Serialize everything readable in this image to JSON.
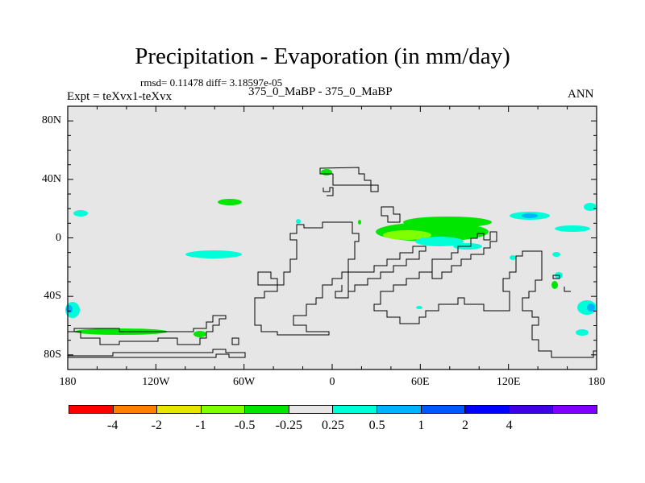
{
  "title": "Precipitation - Evaporation (in mm/day)",
  "stats": "rmsd= 0.11478  diff= 3.18597e-05",
  "subtitle": "375_0_MaBP - 375_0_MaBP",
  "expt": "Expt = teXvx1-teXvx",
  "season": "ANN",
  "axes": {
    "y_ticks": [
      {
        "label": "80N",
        "lat": 80
      },
      {
        "label": "40N",
        "lat": 40
      },
      {
        "label": "0",
        "lat": 0
      },
      {
        "label": "40S",
        "lat": -40
      },
      {
        "label": "80S",
        "lat": -80
      }
    ],
    "x_ticks": [
      {
        "label": "180",
        "lon": -180
      },
      {
        "label": "120W",
        "lon": -120
      },
      {
        "label": "60W",
        "lon": -60
      },
      {
        "label": "0",
        "lon": 0
      },
      {
        "label": "60E",
        "lon": 60
      },
      {
        "label": "120E",
        "lon": 120
      },
      {
        "label": "180",
        "lon": 180
      }
    ],
    "lat_range": [
      -90,
      90
    ],
    "lon_range": [
      -180,
      180
    ]
  },
  "colorbar": {
    "colors": [
      "#ff0000",
      "#ff8000",
      "#e6e600",
      "#80ff00",
      "#00e600",
      "#e6e6e6",
      "#00ffd9",
      "#00b3ff",
      "#0059ff",
      "#0000ff",
      "#4000e6",
      "#8000ff"
    ],
    "labels": [
      "-4",
      "-2",
      "-1",
      "-0.5",
      "-0.25",
      "0.25",
      "0.5",
      "1",
      "2",
      "4"
    ]
  },
  "background_color": "#e6e6e6"
}
